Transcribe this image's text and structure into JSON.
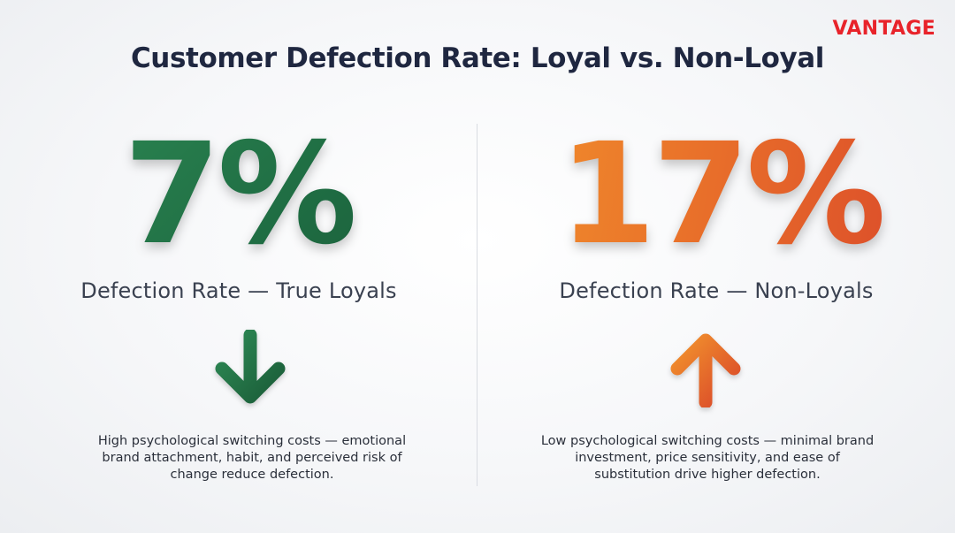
{
  "brand": {
    "name": "VANTAGE",
    "color": "#e8232a"
  },
  "title": "Customer Defection Rate: Loyal vs. Non-Loyal",
  "panels": {
    "loyal": {
      "value": "7%",
      "label": "Defection Rate — True Loyals",
      "arrow_icon": "arrow-down-icon",
      "color": "#1f6d43",
      "description": "High psychological switching costs — emotional brand attachment, habit, and perceived risk of change reduce defection."
    },
    "non_loyal": {
      "value": "17%",
      "label": "Defection Rate — Non-Loyals",
      "arrow_icon": "arrow-up-icon",
      "color": "#e8632a",
      "description": "Low psychological switching costs — minimal brand investment, price sensitivity, and ease of substitution drive higher defection."
    }
  }
}
